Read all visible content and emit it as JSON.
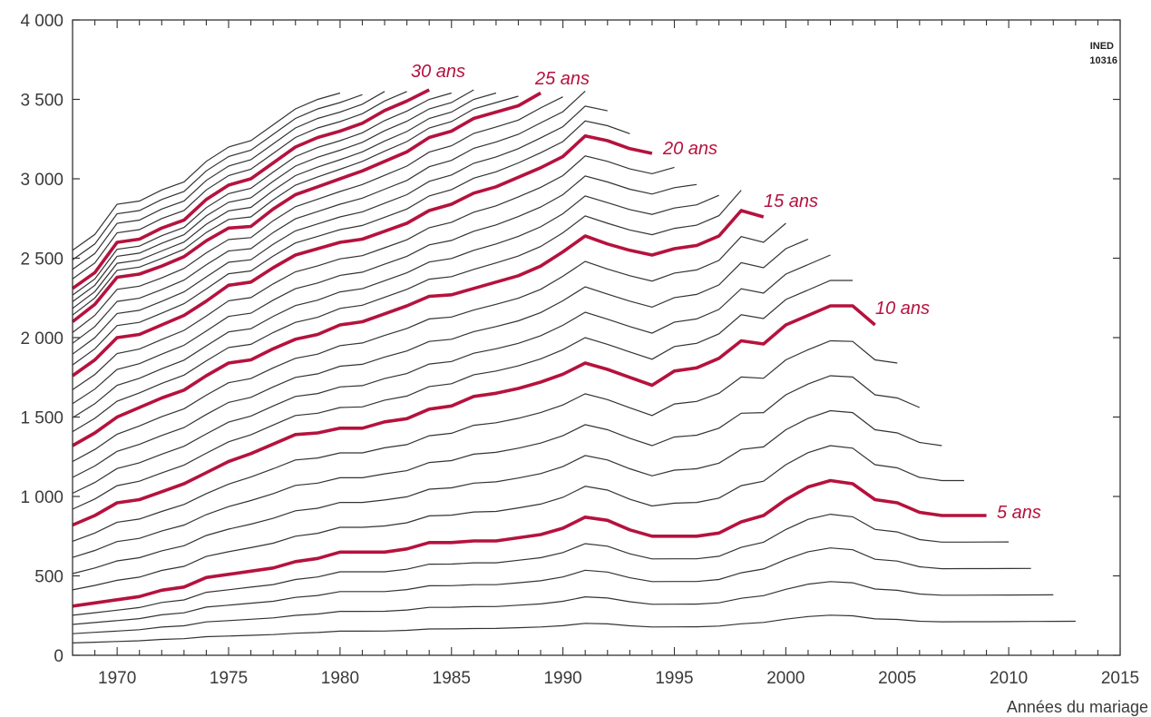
{
  "chart_data": {
    "type": "line",
    "title": "",
    "xlabel": "Années du mariage",
    "ylabel": "",
    "source_tag": [
      "INED",
      "10316"
    ],
    "xlim": [
      1968,
      2015
    ],
    "ylim": [
      0,
      4000
    ],
    "x_ticks": [
      "1970",
      "1975",
      "1980",
      "1985",
      "1990",
      "1995",
      "2000",
      "2005",
      "2010",
      "2015"
    ],
    "y_ticks": [
      "0",
      "500",
      "1 000",
      "1 500",
      "2 000",
      "2 500",
      "3 000",
      "3 500",
      "4 000"
    ],
    "grid": false,
    "highlight_color": "#b5123e",
    "line_color": "#333333",
    "highlighted": [
      {
        "label": "5 ans",
        "x": [
          1968,
          1969,
          1970,
          1971,
          1972,
          1973,
          1974,
          1975,
          1976,
          1977,
          1978,
          1979,
          1980,
          1981,
          1982,
          1983,
          1984,
          1985,
          1986,
          1987,
          1988,
          1989,
          1990,
          1991,
          1992,
          1993,
          1994,
          1995,
          1996,
          1997,
          1998,
          1999,
          2000,
          2001,
          2002,
          2003,
          2004,
          2005,
          2006,
          2007,
          2008,
          2009
        ],
        "values": [
          310,
          330,
          350,
          370,
          410,
          430,
          490,
          510,
          530,
          550,
          590,
          610,
          650,
          650,
          650,
          670,
          710,
          710,
          720,
          720,
          740,
          760,
          800,
          870,
          850,
          790,
          750,
          750,
          750,
          770,
          840,
          880,
          980,
          1060,
          1100,
          1080,
          980,
          960,
          900,
          880,
          880,
          880
        ]
      },
      {
        "label": "10 ans",
        "x": [
          1968,
          1969,
          1970,
          1971,
          1972,
          1973,
          1974,
          1975,
          1976,
          1977,
          1978,
          1979,
          1980,
          1981,
          1982,
          1983,
          1984,
          1985,
          1986,
          1987,
          1988,
          1989,
          1990,
          1991,
          1992,
          1993,
          1994,
          1995,
          1996,
          1997,
          1998,
          1999,
          2000,
          2001,
          2002,
          2003,
          2004
        ],
        "values": [
          820,
          880,
          960,
          980,
          1030,
          1080,
          1150,
          1220,
          1270,
          1330,
          1390,
          1400,
          1430,
          1430,
          1470,
          1490,
          1550,
          1570,
          1630,
          1650,
          1680,
          1720,
          1770,
          1840,
          1800,
          1750,
          1700,
          1790,
          1810,
          1870,
          1980,
          1960,
          2080,
          2140,
          2200,
          2200,
          2080
        ]
      },
      {
        "label": "15 ans",
        "x": [
          1968,
          1969,
          1970,
          1971,
          1972,
          1973,
          1974,
          1975,
          1976,
          1977,
          1978,
          1979,
          1980,
          1981,
          1982,
          1983,
          1984,
          1985,
          1986,
          1987,
          1988,
          1989,
          1990,
          1991,
          1992,
          1993,
          1994,
          1995,
          1996,
          1997,
          1998,
          1999
        ],
        "values": [
          1320,
          1400,
          1500,
          1560,
          1620,
          1670,
          1760,
          1840,
          1860,
          1930,
          1990,
          2020,
          2080,
          2100,
          2150,
          2200,
          2260,
          2270,
          2310,
          2350,
          2390,
          2450,
          2540,
          2640,
          2590,
          2550,
          2520,
          2560,
          2580,
          2640,
          2800,
          2760
        ]
      },
      {
        "label": "20 ans",
        "x": [
          1968,
          1969,
          1970,
          1971,
          1972,
          1973,
          1974,
          1975,
          1976,
          1977,
          1978,
          1979,
          1980,
          1981,
          1982,
          1983,
          1984,
          1985,
          1986,
          1987,
          1988,
          1989,
          1990,
          1991,
          1992,
          1993,
          1994
        ],
        "values": [
          1760,
          1860,
          2000,
          2020,
          2080,
          2140,
          2230,
          2330,
          2350,
          2440,
          2520,
          2560,
          2600,
          2620,
          2670,
          2720,
          2800,
          2840,
          2910,
          2950,
          3010,
          3070,
          3140,
          3270,
          3240,
          3190,
          3160
        ]
      },
      {
        "label": "25 ans",
        "x": [
          1968,
          1969,
          1970,
          1971,
          1972,
          1973,
          1974,
          1975,
          1976,
          1977,
          1978,
          1979,
          1980,
          1981,
          1982,
          1983,
          1984,
          1985,
          1986,
          1987,
          1988,
          1989
        ],
        "values": [
          2100,
          2210,
          2380,
          2400,
          2450,
          2510,
          2610,
          2690,
          2700,
          2810,
          2900,
          2950,
          3000,
          3050,
          3110,
          3170,
          3260,
          3300,
          3380,
          3420,
          3460,
          3540
        ]
      },
      {
        "label": "30 ans",
        "x": [
          1968,
          1969,
          1970,
          1971,
          1972,
          1973,
          1974,
          1975,
          1976,
          1977,
          1978,
          1979,
          1980,
          1981,
          1982,
          1983,
          1984
        ],
        "values": [
          2310,
          2410,
          2600,
          2620,
          2690,
          2740,
          2870,
          2960,
          3000,
          3100,
          3200,
          3260,
          3300,
          3350,
          3430,
          3490,
          3560
        ]
      }
    ],
    "background_series_count": 32
  }
}
